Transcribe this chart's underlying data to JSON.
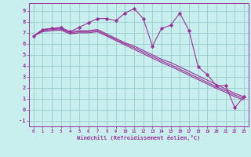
{
  "background_color": "#c8eeee",
  "grid_color": "#99cccc",
  "line_color": "#993399",
  "xlabel": "Windchill (Refroidissement éolien,°C)",
  "xlim": [
    -0.5,
    23.5
  ],
  "ylim": [
    -1.5,
    9.7
  ],
  "yticks": [
    -1,
    0,
    1,
    2,
    3,
    4,
    5,
    6,
    7,
    8,
    9
  ],
  "xticks": [
    0,
    1,
    2,
    3,
    4,
    5,
    6,
    7,
    8,
    9,
    10,
    11,
    12,
    13,
    14,
    15,
    16,
    17,
    18,
    19,
    20,
    21,
    22,
    23
  ],
  "x": [
    0,
    1,
    2,
    3,
    4,
    5,
    6,
    7,
    8,
    9,
    10,
    11,
    12,
    13,
    14,
    15,
    16,
    17,
    18,
    19,
    20,
    21,
    22,
    23
  ],
  "series1": [
    6.7,
    7.3,
    7.4,
    7.5,
    7.1,
    7.5,
    7.9,
    8.3,
    8.3,
    8.1,
    8.8,
    9.2,
    8.3,
    5.8,
    7.4,
    7.7,
    8.8,
    7.2,
    3.9,
    3.2,
    2.2,
    2.2,
    0.2,
    1.2
  ],
  "series2": [
    6.7,
    7.3,
    7.4,
    7.4,
    7.1,
    7.2,
    7.2,
    7.3,
    6.9,
    6.5,
    6.1,
    5.8,
    5.4,
    5.0,
    4.6,
    4.3,
    3.9,
    3.5,
    3.1,
    2.7,
    2.3,
    1.9,
    1.5,
    1.2
  ],
  "series3": [
    6.7,
    7.2,
    7.3,
    7.35,
    7.0,
    7.1,
    7.1,
    7.2,
    6.8,
    6.4,
    6.0,
    5.65,
    5.25,
    4.85,
    4.45,
    4.1,
    3.7,
    3.3,
    2.9,
    2.5,
    2.1,
    1.75,
    1.35,
    1.05
  ],
  "series4": [
    6.7,
    7.1,
    7.2,
    7.25,
    6.9,
    7.0,
    7.0,
    7.1,
    6.7,
    6.3,
    5.9,
    5.5,
    5.1,
    4.7,
    4.3,
    3.95,
    3.55,
    3.15,
    2.75,
    2.35,
    1.95,
    1.6,
    1.2,
    0.9
  ]
}
